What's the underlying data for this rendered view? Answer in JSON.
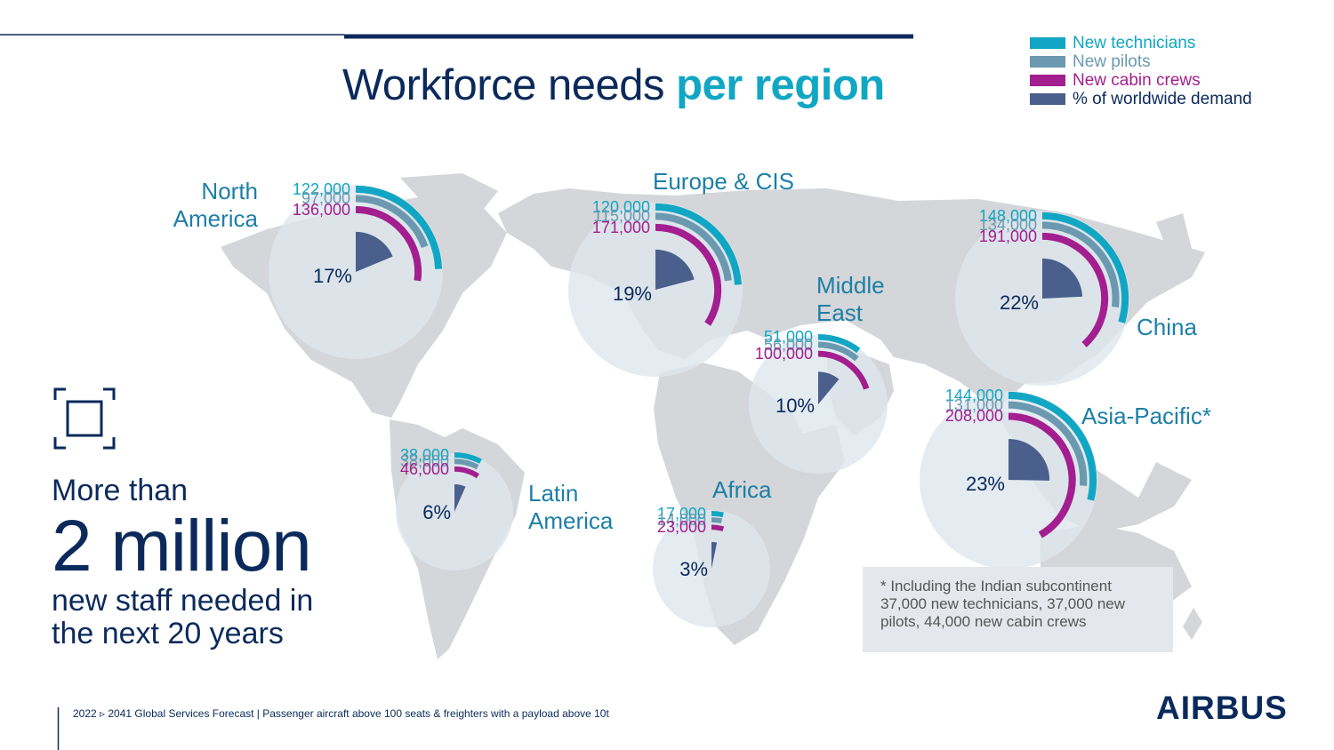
{
  "header": {
    "title_part1": "Workforce needs ",
    "title_part2": "per region"
  },
  "legend": [
    {
      "label": "New technicians",
      "color": "#11a6c4"
    },
    {
      "label": "New pilots",
      "color": "#6a99b0"
    },
    {
      "label": "New cabin crews",
      "color": "#a31e8f"
    },
    {
      "label": "% of worldwide demand",
      "color": "#4a5f8c"
    }
  ],
  "chart_data": {
    "type": "radial-bar-map",
    "title": "Workforce needs per region",
    "series": [
      "New technicians",
      "New pilots",
      "New cabin crews",
      "% of worldwide demand"
    ],
    "regions": [
      {
        "name": "North America",
        "technicians": 122000,
        "pilots": 97000,
        "cabin_crews": 136000,
        "share_pct": 17,
        "technicians_label": "122,000",
        "pilots_label": "97,000",
        "cabin_crews_label": "136,000",
        "share_label": "17%"
      },
      {
        "name": "Europe & CIS",
        "technicians": 120000,
        "pilots": 115000,
        "cabin_crews": 171000,
        "share_pct": 19,
        "technicians_label": "120,000",
        "pilots_label": "115,000",
        "cabin_crews_label": "171,000",
        "share_label": "19%"
      },
      {
        "name": "Middle East",
        "technicians": 51000,
        "pilots": 56000,
        "cabin_crews": 100000,
        "share_pct": 10,
        "technicians_label": "51,000",
        "pilots_label": "56,000",
        "cabin_crews_label": "100,000",
        "share_label": "10%"
      },
      {
        "name": "China",
        "technicians": 148000,
        "pilots": 134000,
        "cabin_crews": 191000,
        "share_pct": 22,
        "technicians_label": "148,000",
        "pilots_label": "134,000",
        "cabin_crews_label": "191,000",
        "share_label": "22%"
      },
      {
        "name": "Asia-Pacific*",
        "technicians": 144000,
        "pilots": 131000,
        "cabin_crews": 208000,
        "share_pct": 23,
        "technicians_label": "144,000",
        "pilots_label": "131,000",
        "cabin_crews_label": "208,000",
        "share_label": "23%"
      },
      {
        "name": "Latin America",
        "technicians": 38000,
        "pilots": 38000,
        "cabin_crews": 46000,
        "share_pct": 6,
        "technicians_label": "38,000",
        "pilots_label": "38,000",
        "cabin_crews_label": "46,000",
        "share_label": "6%"
      },
      {
        "name": "Africa",
        "technicians": 17000,
        "pilots": 14000,
        "cabin_crews": 23000,
        "share_pct": 3,
        "technicians_label": "17,000",
        "pilots_label": "14,000",
        "cabin_crews_label": "23,000",
        "share_label": "3%"
      }
    ]
  },
  "region_labels": {
    "north_america": [
      "North",
      "America"
    ],
    "europe": "Europe & CIS",
    "middle_east": [
      "Middle",
      "East"
    ],
    "china": "China",
    "asia_pacific": "Asia-Pacific*",
    "latin_america": [
      "Latin",
      "America"
    ],
    "africa": "Africa"
  },
  "note": {
    "lines": [
      "* Including the Indian subcontinent",
      "37,000 new technicians, 37,000 new",
      "pilots, 44,000 new cabin crews"
    ]
  },
  "summary": {
    "more_than": "More than",
    "big": "2 million",
    "line1": "new staff needed in",
    "line2": "the next 20 years"
  },
  "footer": {
    "text": "2022 ▹ 2041 Global Services Forecast | Passenger aircraft above 100 seats & freighters with a payload above 10t"
  },
  "brand": {
    "logo_text": "AIRBUS"
  },
  "icons": {
    "summary_icon": "expand-frame-icon"
  }
}
